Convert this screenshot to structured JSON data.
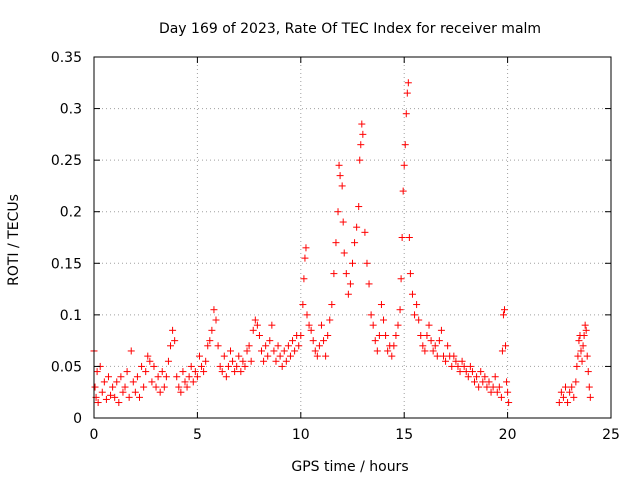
{
  "chart_data": {
    "type": "scatter",
    "title": "Day 169 of 2023, Rate Of TEC Index for receiver malm",
    "xlabel": "GPS time / hours",
    "ylabel": "ROTI / TECUs",
    "xlim": [
      0,
      25
    ],
    "ylim": [
      0,
      0.35
    ],
    "x_ticks": [
      0,
      5,
      10,
      15,
      20,
      25
    ],
    "x_tick_labels": [
      "0",
      "5",
      "10",
      "15",
      "20",
      "25"
    ],
    "y_ticks": [
      0,
      0.05,
      0.1,
      0.15,
      0.2,
      0.25,
      0.3,
      0.35
    ],
    "y_tick_labels": [
      "0",
      "0.05",
      "0.1",
      "0.15",
      "0.2",
      "0.25",
      "0.3",
      "0.35"
    ],
    "grid": true,
    "marker": "+",
    "marker_color": "#ff0000",
    "series": [
      {
        "points": [
          [
            0.0,
            0.065
          ],
          [
            0.05,
            0.03
          ],
          [
            0.1,
            0.02
          ],
          [
            0.15,
            0.045
          ],
          [
            0.2,
            0.015
          ],
          [
            0.3,
            0.05
          ],
          [
            0.4,
            0.025
          ],
          [
            0.5,
            0.035
          ],
          [
            0.6,
            0.018
          ],
          [
            0.7,
            0.04
          ],
          [
            0.8,
            0.022
          ],
          [
            0.9,
            0.03
          ],
          [
            1.0,
            0.02
          ],
          [
            1.1,
            0.035
          ],
          [
            1.2,
            0.015
          ],
          [
            1.3,
            0.04
          ],
          [
            1.4,
            0.025
          ],
          [
            1.5,
            0.03
          ],
          [
            1.6,
            0.045
          ],
          [
            1.7,
            0.02
          ],
          [
            1.8,
            0.065
          ],
          [
            1.9,
            0.035
          ],
          [
            2.0,
            0.025
          ],
          [
            2.1,
            0.04
          ],
          [
            2.2,
            0.02
          ],
          [
            2.3,
            0.05
          ],
          [
            2.4,
            0.03
          ],
          [
            2.5,
            0.045
          ],
          [
            2.6,
            0.06
          ],
          [
            2.7,
            0.055
          ],
          [
            2.8,
            0.035
          ],
          [
            2.9,
            0.05
          ],
          [
            3.0,
            0.03
          ],
          [
            3.1,
            0.04
          ],
          [
            3.2,
            0.025
          ],
          [
            3.3,
            0.045
          ],
          [
            3.4,
            0.03
          ],
          [
            3.5,
            0.04
          ],
          [
            3.6,
            0.055
          ],
          [
            3.7,
            0.07
          ],
          [
            3.8,
            0.085
          ],
          [
            3.9,
            0.075
          ],
          [
            4.0,
            0.04
          ],
          [
            4.1,
            0.03
          ],
          [
            4.2,
            0.025
          ],
          [
            4.3,
            0.045
          ],
          [
            4.4,
            0.035
          ],
          [
            4.5,
            0.03
          ],
          [
            4.6,
            0.04
          ],
          [
            4.7,
            0.05
          ],
          [
            4.8,
            0.035
          ],
          [
            4.9,
            0.045
          ],
          [
            5.0,
            0.04
          ],
          [
            5.1,
            0.06
          ],
          [
            5.2,
            0.05
          ],
          [
            5.3,
            0.045
          ],
          [
            5.4,
            0.055
          ],
          [
            5.5,
            0.07
          ],
          [
            5.6,
            0.075
          ],
          [
            5.7,
            0.085
          ],
          [
            5.8,
            0.105
          ],
          [
            5.9,
            0.095
          ],
          [
            6.0,
            0.07
          ],
          [
            6.1,
            0.05
          ],
          [
            6.2,
            0.045
          ],
          [
            6.3,
            0.06
          ],
          [
            6.4,
            0.04
          ],
          [
            6.5,
            0.05
          ],
          [
            6.6,
            0.065
          ],
          [
            6.7,
            0.055
          ],
          [
            6.8,
            0.045
          ],
          [
            6.9,
            0.05
          ],
          [
            7.0,
            0.06
          ],
          [
            7.1,
            0.045
          ],
          [
            7.2,
            0.055
          ],
          [
            7.3,
            0.05
          ],
          [
            7.4,
            0.065
          ],
          [
            7.5,
            0.07
          ],
          [
            7.6,
            0.055
          ],
          [
            7.7,
            0.085
          ],
          [
            7.8,
            0.095
          ],
          [
            7.9,
            0.09
          ],
          [
            8.0,
            0.08
          ],
          [
            8.1,
            0.065
          ],
          [
            8.2,
            0.055
          ],
          [
            8.3,
            0.07
          ],
          [
            8.4,
            0.06
          ],
          [
            8.5,
            0.075
          ],
          [
            8.6,
            0.09
          ],
          [
            8.7,
            0.065
          ],
          [
            8.8,
            0.055
          ],
          [
            8.9,
            0.07
          ],
          [
            9.0,
            0.06
          ],
          [
            9.1,
            0.05
          ],
          [
            9.2,
            0.065
          ],
          [
            9.3,
            0.055
          ],
          [
            9.4,
            0.07
          ],
          [
            9.5,
            0.06
          ],
          [
            9.6,
            0.075
          ],
          [
            9.7,
            0.065
          ],
          [
            9.8,
            0.08
          ],
          [
            9.9,
            0.07
          ],
          [
            10.0,
            0.08
          ],
          [
            10.1,
            0.11
          ],
          [
            10.15,
            0.135
          ],
          [
            10.2,
            0.155
          ],
          [
            10.25,
            0.165
          ],
          [
            10.3,
            0.1
          ],
          [
            10.4,
            0.09
          ],
          [
            10.5,
            0.085
          ],
          [
            10.6,
            0.075
          ],
          [
            10.7,
            0.065
          ],
          [
            10.8,
            0.06
          ],
          [
            10.9,
            0.07
          ],
          [
            11.0,
            0.09
          ],
          [
            11.1,
            0.075
          ],
          [
            11.2,
            0.06
          ],
          [
            11.3,
            0.08
          ],
          [
            11.4,
            0.095
          ],
          [
            11.5,
            0.11
          ],
          [
            11.6,
            0.14
          ],
          [
            11.7,
            0.17
          ],
          [
            11.8,
            0.2
          ],
          [
            11.85,
            0.245
          ],
          [
            11.9,
            0.235
          ],
          [
            12.0,
            0.225
          ],
          [
            12.05,
            0.19
          ],
          [
            12.1,
            0.16
          ],
          [
            12.2,
            0.14
          ],
          [
            12.3,
            0.12
          ],
          [
            12.4,
            0.13
          ],
          [
            12.5,
            0.15
          ],
          [
            12.6,
            0.17
          ],
          [
            12.7,
            0.185
          ],
          [
            12.8,
            0.205
          ],
          [
            12.85,
            0.25
          ],
          [
            12.9,
            0.265
          ],
          [
            12.95,
            0.285
          ],
          [
            13.0,
            0.275
          ],
          [
            13.1,
            0.18
          ],
          [
            13.2,
            0.15
          ],
          [
            13.3,
            0.13
          ],
          [
            13.4,
            0.1
          ],
          [
            13.5,
            0.09
          ],
          [
            13.6,
            0.075
          ],
          [
            13.7,
            0.065
          ],
          [
            13.8,
            0.08
          ],
          [
            13.9,
            0.11
          ],
          [
            14.0,
            0.095
          ],
          [
            14.1,
            0.08
          ],
          [
            14.2,
            0.065
          ],
          [
            14.3,
            0.07
          ],
          [
            14.4,
            0.06
          ],
          [
            14.5,
            0.07
          ],
          [
            14.6,
            0.08
          ],
          [
            14.7,
            0.09
          ],
          [
            14.8,
            0.105
          ],
          [
            14.85,
            0.135
          ],
          [
            14.9,
            0.175
          ],
          [
            14.95,
            0.22
          ],
          [
            15.0,
            0.245
          ],
          [
            15.05,
            0.265
          ],
          [
            15.1,
            0.295
          ],
          [
            15.15,
            0.315
          ],
          [
            15.2,
            0.325
          ],
          [
            15.25,
            0.175
          ],
          [
            15.3,
            0.14
          ],
          [
            15.4,
            0.12
          ],
          [
            15.5,
            0.1
          ],
          [
            15.6,
            0.11
          ],
          [
            15.7,
            0.095
          ],
          [
            15.8,
            0.08
          ],
          [
            15.9,
            0.07
          ],
          [
            16.0,
            0.065
          ],
          [
            16.1,
            0.08
          ],
          [
            16.2,
            0.09
          ],
          [
            16.3,
            0.075
          ],
          [
            16.4,
            0.065
          ],
          [
            16.5,
            0.07
          ],
          [
            16.6,
            0.06
          ],
          [
            16.7,
            0.075
          ],
          [
            16.8,
            0.085
          ],
          [
            16.9,
            0.06
          ],
          [
            17.0,
            0.055
          ],
          [
            17.1,
            0.07
          ],
          [
            17.2,
            0.06
          ],
          [
            17.3,
            0.05
          ],
          [
            17.4,
            0.06
          ],
          [
            17.5,
            0.055
          ],
          [
            17.6,
            0.05
          ],
          [
            17.7,
            0.045
          ],
          [
            17.8,
            0.055
          ],
          [
            17.9,
            0.05
          ],
          [
            18.0,
            0.045
          ],
          [
            18.1,
            0.04
          ],
          [
            18.2,
            0.05
          ],
          [
            18.3,
            0.045
          ],
          [
            18.4,
            0.035
          ],
          [
            18.5,
            0.04
          ],
          [
            18.6,
            0.03
          ],
          [
            18.7,
            0.045
          ],
          [
            18.8,
            0.035
          ],
          [
            18.9,
            0.04
          ],
          [
            19.0,
            0.03
          ],
          [
            19.1,
            0.035
          ],
          [
            19.2,
            0.025
          ],
          [
            19.3,
            0.03
          ],
          [
            19.4,
            0.04
          ],
          [
            19.5,
            0.025
          ],
          [
            19.6,
            0.03
          ],
          [
            19.7,
            0.02
          ],
          [
            19.75,
            0.065
          ],
          [
            19.8,
            0.1
          ],
          [
            19.85,
            0.105
          ],
          [
            19.9,
            0.07
          ],
          [
            19.95,
            0.035
          ],
          [
            20.0,
            0.025
          ],
          [
            20.05,
            0.015
          ],
          [
            22.5,
            0.015
          ],
          [
            22.6,
            0.025
          ],
          [
            22.7,
            0.02
          ],
          [
            22.8,
            0.03
          ],
          [
            22.9,
            0.015
          ],
          [
            23.0,
            0.025
          ],
          [
            23.1,
            0.03
          ],
          [
            23.2,
            0.02
          ],
          [
            23.3,
            0.035
          ],
          [
            23.35,
            0.05
          ],
          [
            23.4,
            0.06
          ],
          [
            23.45,
            0.075
          ],
          [
            23.5,
            0.08
          ],
          [
            23.55,
            0.065
          ],
          [
            23.6,
            0.055
          ],
          [
            23.65,
            0.07
          ],
          [
            23.7,
            0.08
          ],
          [
            23.75,
            0.09
          ],
          [
            23.8,
            0.085
          ],
          [
            23.85,
            0.06
          ],
          [
            23.9,
            0.045
          ],
          [
            23.95,
            0.03
          ],
          [
            24.0,
            0.02
          ]
        ]
      }
    ]
  }
}
